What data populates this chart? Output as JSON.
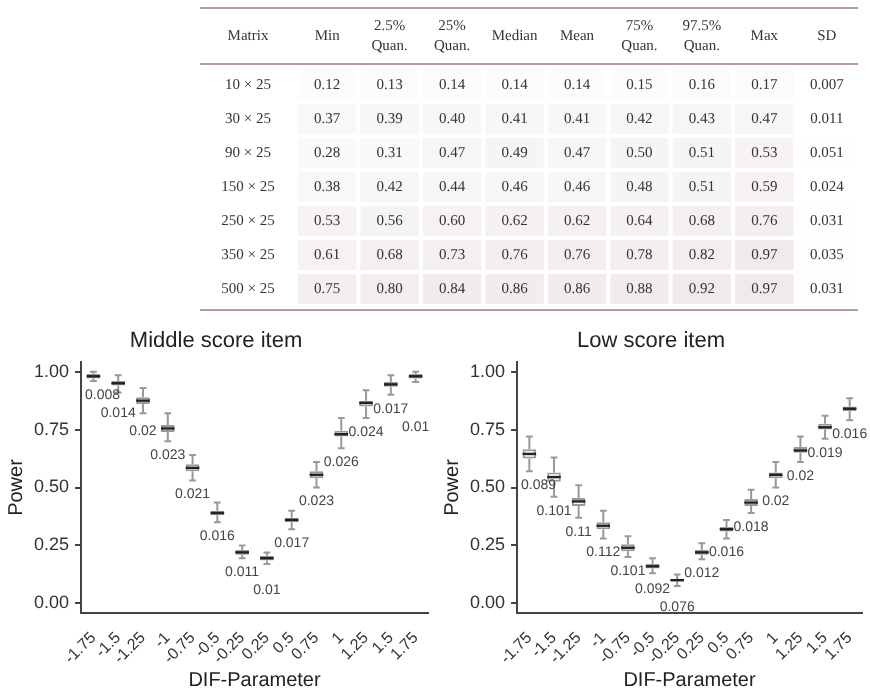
{
  "chart_data": [
    {
      "type": "heatmap",
      "ylabel": "Matrix",
      "data_labels": true,
      "cells": [
        [
          0.12,
          0.13,
          0.14,
          0.14,
          0.14,
          0.15,
          0.16,
          0.17,
          0.007
        ],
        [
          0.37,
          0.39,
          0.4,
          0.41,
          0.41,
          0.42,
          0.43,
          0.47,
          0.011
        ],
        [
          0.28,
          0.31,
          0.47,
          0.49,
          0.47,
          0.5,
          0.51,
          0.53,
          0.051
        ],
        [
          0.38,
          0.42,
          0.44,
          0.46,
          0.46,
          0.48,
          0.51,
          0.59,
          0.024
        ],
        [
          0.53,
          0.56,
          0.6,
          0.62,
          0.62,
          0.64,
          0.68,
          0.76,
          0.031
        ],
        [
          0.61,
          0.68,
          0.73,
          0.76,
          0.76,
          0.78,
          0.82,
          0.97,
          0.035
        ],
        [
          0.75,
          0.8,
          0.84,
          0.86,
          0.86,
          0.88,
          0.92,
          0.97,
          0.031
        ]
      ],
      "categories": [
        "Min",
        "2.5% Quan.",
        "25% Quan.",
        "Median",
        "Mean",
        "75% Quan.",
        "97.5% Quan.",
        "Max",
        "SD"
      ],
      "y_categories": [
        "10 × 25",
        "30 × 25",
        "90 × 25",
        "150 × 25",
        "250 × 25",
        "350 × 25",
        "500 × 25"
      ],
      "cell_labels": [
        [
          "0.12",
          "0.13",
          "0.14",
          "0.14",
          "0.14",
          "0.15",
          "0.16",
          "0.17",
          "0.007"
        ],
        [
          "0.37",
          "0.39",
          "0.40",
          "0.41",
          "0.41",
          "0.42",
          "0.43",
          "0.47",
          "0.011"
        ],
        [
          "0.28",
          "0.31",
          "0.47",
          "0.49",
          "0.47",
          "0.50",
          "0.51",
          "0.53",
          "0.051"
        ],
        [
          "0.38",
          "0.42",
          "0.44",
          "0.46",
          "0.46",
          "0.48",
          "0.51",
          "0.59",
          "0.024"
        ],
        [
          "0.53",
          "0.56",
          "0.60",
          "0.62",
          "0.62",
          "0.64",
          "0.68",
          "0.76",
          "0.031"
        ],
        [
          "0.61",
          "0.68",
          "0.73",
          "0.76",
          "0.76",
          "0.78",
          "0.82",
          "0.97",
          "0.035"
        ],
        [
          "0.75",
          "0.80",
          "0.84",
          "0.86",
          "0.86",
          "0.88",
          "0.92",
          "0.97",
          "0.031"
        ]
      ]
    },
    {
      "type": "box",
      "title": "Middle score item",
      "xlabel": "DIF-Parameter",
      "ylabel": "Power",
      "color": "#999999",
      "grid": false,
      "categories": [
        "-1.75",
        "-1.5",
        "-1.25",
        "-1",
        "-0.75",
        "-0.5",
        "-0.25",
        "0.25",
        "0.5",
        "0.75",
        "1",
        "1.25",
        "1.5",
        "1.75"
      ],
      "boxes": [
        {
          "low": 0.96,
          "q1": 0.97,
          "median": 0.98,
          "q3": 0.99,
          "high": 1.0
        },
        {
          "low": 0.91,
          "q1": 0.94,
          "median": 0.95,
          "q3": 0.96,
          "high": 0.985
        },
        {
          "low": 0.82,
          "q1": 0.86,
          "median": 0.875,
          "q3": 0.89,
          "high": 0.93
        },
        {
          "low": 0.7,
          "q1": 0.74,
          "median": 0.755,
          "q3": 0.77,
          "high": 0.82
        },
        {
          "low": 0.53,
          "q1": 0.57,
          "median": 0.585,
          "q3": 0.6,
          "high": 0.64
        },
        {
          "low": 0.35,
          "q1": 0.38,
          "median": 0.39,
          "q3": 0.4,
          "high": 0.435
        },
        {
          "low": 0.195,
          "q1": 0.21,
          "median": 0.22,
          "q3": 0.23,
          "high": 0.25
        },
        {
          "low": 0.17,
          "q1": 0.185,
          "median": 0.195,
          "q3": 0.205,
          "high": 0.22
        },
        {
          "low": 0.32,
          "q1": 0.35,
          "median": 0.36,
          "q3": 0.37,
          "high": 0.4
        },
        {
          "low": 0.5,
          "q1": 0.54,
          "median": 0.555,
          "q3": 0.57,
          "high": 0.61
        },
        {
          "low": 0.67,
          "q1": 0.72,
          "median": 0.73,
          "q3": 0.745,
          "high": 0.8
        },
        {
          "low": 0.8,
          "q1": 0.85,
          "median": 0.865,
          "q3": 0.875,
          "high": 0.92
        },
        {
          "low": 0.9,
          "q1": 0.935,
          "median": 0.945,
          "q3": 0.955,
          "high": 0.985
        },
        {
          "low": 0.955,
          "q1": 0.97,
          "median": 0.98,
          "q3": 0.99,
          "high": 1.0
        }
      ],
      "annotations": [
        "0.008",
        "0.014",
        "0.02",
        "0.023",
        "0.021",
        "0.016",
        "0.011",
        "0.01",
        "0.017",
        "0.023",
        "0.026",
        "0.024",
        "0.017",
        "0.01"
      ],
      "ylim": [
        -0.04,
        1.04
      ],
      "yticks": [
        {
          "value": 0,
          "label": "0.00"
        },
        {
          "value": 0.25,
          "label": "0.25"
        },
        {
          "value": 0.5,
          "label": "0.50"
        },
        {
          "value": 0.75,
          "label": "0.75"
        },
        {
          "value": 1,
          "label": "1.00"
        }
      ]
    },
    {
      "type": "box",
      "title": "Low score item",
      "xlabel": "DIF-Parameter",
      "ylabel": "Power",
      "color": "#999999",
      "grid": false,
      "categories": [
        "-1.75",
        "-1.5",
        "-1.25",
        "-1",
        "-0.75",
        "-0.5",
        "-0.25",
        "0.25",
        "0.5",
        "0.75",
        "1",
        "1.25",
        "1.5",
        "1.75"
      ],
      "boxes": [
        {
          "low": 0.57,
          "q1": 0.625,
          "median": 0.645,
          "q3": 0.665,
          "high": 0.72
        },
        {
          "low": 0.46,
          "q1": 0.525,
          "median": 0.545,
          "q3": 0.565,
          "high": 0.63
        },
        {
          "low": 0.37,
          "q1": 0.42,
          "median": 0.44,
          "q3": 0.455,
          "high": 0.51
        },
        {
          "low": 0.28,
          "q1": 0.32,
          "median": 0.335,
          "q3": 0.35,
          "high": 0.4
        },
        {
          "low": 0.2,
          "q1": 0.225,
          "median": 0.24,
          "q3": 0.255,
          "high": 0.29
        },
        {
          "low": 0.13,
          "q1": 0.15,
          "median": 0.16,
          "q3": 0.17,
          "high": 0.195
        },
        {
          "low": 0.075,
          "q1": 0.095,
          "median": 0.1,
          "q3": 0.105,
          "high": 0.125
        },
        {
          "low": 0.19,
          "q1": 0.21,
          "median": 0.22,
          "q3": 0.23,
          "high": 0.26
        },
        {
          "low": 0.28,
          "q1": 0.31,
          "median": 0.32,
          "q3": 0.33,
          "high": 0.36
        },
        {
          "low": 0.39,
          "q1": 0.42,
          "median": 0.435,
          "q3": 0.45,
          "high": 0.49
        },
        {
          "low": 0.5,
          "q1": 0.54,
          "median": 0.555,
          "q3": 0.565,
          "high": 0.61
        },
        {
          "low": 0.61,
          "q1": 0.65,
          "median": 0.66,
          "q3": 0.675,
          "high": 0.72
        },
        {
          "low": 0.71,
          "q1": 0.75,
          "median": 0.76,
          "q3": 0.775,
          "high": 0.81
        },
        {
          "low": 0.79,
          "q1": 0.83,
          "median": 0.84,
          "q3": 0.85,
          "high": 0.885
        }
      ],
      "annotations": [
        "0.089",
        "0.101",
        "0.11",
        "0.112",
        "0.101",
        "0.092",
        "0.076",
        "0.012",
        "0.016",
        "0.018",
        "0.02",
        "0.02",
        "0.019",
        "0.016"
      ],
      "ylim": [
        -0.04,
        1.04
      ],
      "yticks": [
        {
          "value": 0,
          "label": "0.00"
        },
        {
          "value": 0.25,
          "label": "0.25"
        },
        {
          "value": 0.5,
          "label": "0.50"
        },
        {
          "value": 0.75,
          "label": "0.75"
        },
        {
          "value": 1,
          "label": "1.00"
        }
      ]
    }
  ]
}
